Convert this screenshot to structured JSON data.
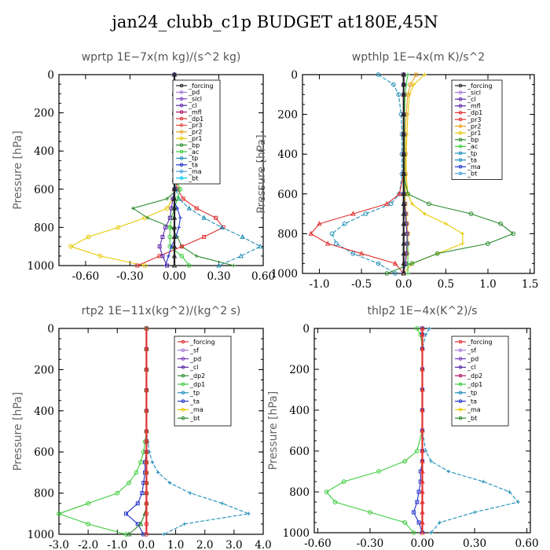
{
  "title": "jan24_clubb_c1p  BUDGET at180E,45N",
  "ylabel": "Pressure [hPa]",
  "chart_data": [
    {
      "type": "line",
      "panel_title": "wprtp  1E−7x(m kg)/(s^2 kg)",
      "xlim": [
        -0.78,
        0.6
      ],
      "ylim": [
        1000,
        0
      ],
      "x_ticks": [
        -0.6,
        -0.3,
        0.0,
        0.3,
        0.6
      ],
      "x_tick_labels": [
        "-0.60",
        "-0.30",
        "0.00",
        "0.30",
        "0.60"
      ],
      "y_ticks": [
        0,
        200,
        400,
        600,
        800,
        1000
      ],
      "y_tick_labels": [
        "0",
        "200",
        "400",
        "600",
        "800",
        "1000"
      ],
      "legend": [
        "_forcing",
        "_pd",
        "_sicl",
        "_cl",
        "_mfl",
        "_dp1",
        "_pr3",
        "_pr2",
        "_pr1",
        "_bp",
        "_ac",
        "_tp",
        "_ta",
        "_ma",
        "_bt"
      ],
      "pressure": [
        0,
        100,
        200,
        300,
        400,
        500,
        550,
        600,
        650,
        700,
        750,
        800,
        850,
        900,
        950,
        1000
      ],
      "series": [
        {
          "name": "_pr1",
          "color": "#e8c800",
          "values": [
            0,
            0,
            0,
            0,
            0,
            0,
            0,
            0,
            -0.01,
            -0.05,
            -0.2,
            -0.38,
            -0.58,
            -0.7,
            -0.5,
            -0.2
          ]
        },
        {
          "name": "_bp",
          "color": "#2e8b2e",
          "values": [
            0,
            0,
            0,
            0,
            0,
            0.01,
            0.01,
            0.02,
            -0.05,
            -0.28,
            -0.18,
            -0.02,
            0.02,
            0.05,
            0.15,
            0.4
          ]
        },
        {
          "name": "_dp1",
          "color": "#e03030",
          "values": [
            0,
            0,
            0,
            0,
            0,
            0,
            0.01,
            0.02,
            0.06,
            0.15,
            0.28,
            0.33,
            0.2,
            0.05,
            -0.1,
            -0.25
          ]
        },
        {
          "name": "_tp",
          "color": "#1f8fb8",
          "values": [
            0,
            0,
            0,
            0,
            0,
            0,
            0,
            0.01,
            0.03,
            0.1,
            0.2,
            0.32,
            0.46,
            0.58,
            0.45,
            0.3
          ]
        },
        {
          "name": "_ac",
          "color": "#3ccc3c",
          "values": [
            0,
            0,
            0,
            0,
            0,
            0,
            0.01,
            0.04,
            0.02,
            0,
            -0.02,
            -0.03,
            -0.03,
            -0.03,
            0.05,
            0.1
          ]
        },
        {
          "name": "_ta",
          "color": "#2233cc",
          "values": [
            0,
            0,
            0,
            0,
            0,
            0,
            0,
            0,
            -0.01,
            0.02,
            0.04,
            0.03,
            0.01,
            -0.02,
            -0.04,
            -0.06
          ]
        },
        {
          "name": "_cl",
          "color": "#5a2aa8",
          "values": [
            0,
            0,
            0,
            0,
            0,
            0,
            0,
            0,
            -0.01,
            -0.02,
            -0.03,
            -0.06,
            -0.08,
            -0.1,
            -0.08,
            -0.05
          ]
        },
        {
          "name": "_forcing",
          "color": "#222222",
          "values": [
            0,
            0,
            0,
            0,
            0,
            0,
            0,
            0,
            0,
            0,
            0,
            0,
            0,
            0,
            0,
            0
          ]
        }
      ]
    },
    {
      "type": "line",
      "panel_title": "wpthlp  1E−4x(m K)/s^2",
      "xlim": [
        -1.2,
        1.55
      ],
      "ylim": [
        1000,
        0
      ],
      "x_ticks": [
        -1.0,
        -0.5,
        0.0,
        0.5,
        1.0,
        1.5
      ],
      "x_tick_labels": [
        "-1.0",
        "-0.5",
        "0.0",
        "0.5",
        "1.0",
        "1.5"
      ],
      "y_ticks": [
        0,
        200,
        400,
        600,
        800,
        1000
      ],
      "y_tick_labels": [
        "0",
        "200",
        "400",
        "600",
        "800",
        "1000"
      ],
      "legend": [
        "_forcing",
        "_sicl",
        "_cl",
        "_mfl",
        "_dp1",
        "_pr3",
        "_pr2",
        "_pr1",
        "_bp",
        "_ac",
        "_tp",
        "_ta",
        "_ma",
        "_bt"
      ],
      "pressure": [
        0,
        50,
        100,
        200,
        300,
        400,
        500,
        600,
        650,
        700,
        750,
        800,
        850,
        900,
        950,
        1000
      ],
      "series": [
        {
          "name": "_tp",
          "color": "#1f8fb8",
          "values": [
            -0.3,
            -0.12,
            -0.06,
            -0.03,
            -0.02,
            -0.02,
            -0.02,
            -0.05,
            -0.15,
            -0.45,
            -0.7,
            -0.85,
            -0.8,
            -0.6,
            -0.3,
            -0.1
          ]
        },
        {
          "name": "_pr1",
          "color": "#e8c800",
          "values": [
            0.25,
            0.12,
            0.07,
            0.05,
            0.04,
            0.03,
            0.03,
            0.05,
            0.1,
            0.25,
            0.5,
            0.7,
            0.7,
            0.4,
            0.1,
            0
          ]
        },
        {
          "name": "_pr2",
          "color": "#e8a020",
          "values": [
            0.15,
            0.08,
            0.05,
            0.03,
            0.02,
            0.02,
            0.02,
            0.02,
            0.02,
            0.03,
            0.04,
            0.05,
            0.05,
            0.04,
            0.02,
            0
          ]
        },
        {
          "name": "_dp1",
          "color": "#e03030",
          "values": [
            0,
            0,
            0,
            0,
            0,
            0,
            0,
            -0.05,
            -0.2,
            -0.6,
            -1.0,
            -1.1,
            -0.9,
            -0.5,
            -0.1,
            0
          ]
        },
        {
          "name": "_bp",
          "color": "#2e8b2e",
          "values": [
            0,
            0,
            0,
            0,
            0,
            0,
            0,
            0.05,
            0.3,
            0.8,
            1.15,
            1.3,
            1.0,
            0.4,
            0.1,
            -0.2
          ]
        },
        {
          "name": "_ac",
          "color": "#3ccc3c",
          "values": [
            0.05,
            0.03,
            0.02,
            0.01,
            0.01,
            0.01,
            0.01,
            0.01,
            0.01,
            0.02,
            0.03,
            0.04,
            0.05,
            0.05,
            0.05,
            0.05
          ]
        },
        {
          "name": "_cl",
          "color": "#5a2aa8",
          "values": [
            0,
            0,
            0,
            0,
            0,
            0,
            0,
            0,
            0.01,
            0.02,
            0.03,
            0.04,
            0.04,
            0.03,
            0.02,
            0
          ]
        },
        {
          "name": "_forcing",
          "color": "#222222",
          "values": [
            0,
            0,
            0,
            0,
            0,
            0,
            0,
            0,
            0,
            0,
            0,
            0,
            0,
            0,
            0,
            0
          ]
        }
      ]
    },
    {
      "type": "line",
      "panel_title": "rtp2  1E−11x(kg^2)/(kg^2 s)",
      "xlim": [
        -3.0,
        4.0
      ],
      "ylim": [
        1000,
        0
      ],
      "x_ticks": [
        -3,
        -2,
        -1,
        0,
        1,
        2,
        3,
        4
      ],
      "x_tick_labels": [
        "-3.0",
        "-2.0",
        "-1.0",
        "0.0",
        "1.0",
        "2.0",
        "3.0",
        "4.0"
      ],
      "y_ticks": [
        0,
        200,
        400,
        600,
        800,
        1000
      ],
      "y_tick_labels": [
        "0",
        "200",
        "400",
        "600",
        "800",
        "1000"
      ],
      "legend": [
        "_forcing",
        "_sf",
        "_pd",
        "_cl",
        "_dp2",
        "_dp1",
        "_tp",
        "_ta",
        "_ma",
        "_bt"
      ],
      "pressure": [
        0,
        100,
        200,
        300,
        400,
        500,
        550,
        600,
        650,
        700,
        750,
        800,
        850,
        900,
        950,
        1000
      ],
      "series": [
        {
          "name": "_dp1",
          "color": "#3ccc3c",
          "values": [
            0,
            0,
            0,
            0,
            0,
            0,
            -0.05,
            -0.1,
            -0.2,
            -0.35,
            -0.6,
            -1.0,
            -2.0,
            -3.0,
            -2.0,
            -0.7
          ]
        },
        {
          "name": "_tp",
          "color": "#1f8fb8",
          "values": [
            0,
            0,
            0,
            0,
            0,
            0,
            0.05,
            0.1,
            0.2,
            0.4,
            0.8,
            1.5,
            2.6,
            3.5,
            1.3,
            0.6
          ]
        },
        {
          "name": "_ta",
          "color": "#2233cc",
          "values": [
            0,
            0,
            0,
            0,
            0,
            0,
            0,
            0,
            -0.05,
            -0.05,
            -0.1,
            -0.15,
            -0.3,
            -0.7,
            -0.3,
            -0.1
          ]
        },
        {
          "name": "_dp2",
          "color": "#2e8b2e",
          "values": [
            0,
            0,
            0,
            0,
            0,
            0,
            0,
            0,
            0,
            0,
            0,
            0,
            0,
            -0.05,
            -0.2,
            -0.6
          ]
        },
        {
          "name": "_forcing",
          "color": "#e03030",
          "values": [
            0,
            0,
            0,
            0,
            0,
            0,
            0,
            0,
            0,
            0,
            0,
            0,
            0,
            0,
            0,
            0
          ]
        }
      ]
    },
    {
      "type": "line",
      "panel_title": "thlp2  1E−4x(K^2)/s",
      "xlim": [
        -0.62,
        0.62
      ],
      "ylim": [
        1000,
        0
      ],
      "x_ticks": [
        -0.6,
        -0.3,
        0.0,
        0.3,
        0.6
      ],
      "x_tick_labels": [
        "-0.60",
        "-0.30",
        "0.00",
        "0.30",
        "0.60"
      ],
      "y_ticks": [
        0,
        200,
        400,
        600,
        800,
        1000
      ],
      "y_tick_labels": [
        "0",
        "200",
        "400",
        "600",
        "800",
        "1000"
      ],
      "legend": [
        "_forcing",
        "_sf",
        "_pd",
        "_cl",
        "_dp2",
        "_dp1",
        "_tp",
        "_ta",
        "_ma",
        "_bt"
      ],
      "pressure": [
        0,
        30,
        100,
        200,
        300,
        400,
        500,
        600,
        650,
        700,
        750,
        800,
        850,
        900,
        950,
        1000
      ],
      "series": [
        {
          "name": "_dp1",
          "color": "#3ccc3c",
          "values": [
            -0.03,
            -0.01,
            0,
            0,
            0,
            0,
            0,
            -0.03,
            -0.1,
            -0.25,
            -0.45,
            -0.55,
            -0.5,
            -0.3,
            -0.1,
            -0.05
          ]
        },
        {
          "name": "_tp",
          "color": "#1f8fb8",
          "values": [
            0.04,
            0.02,
            0,
            0,
            0,
            0,
            0,
            0.02,
            0.05,
            0.15,
            0.35,
            0.5,
            0.55,
            0.3,
            0.1,
            0.05
          ]
        },
        {
          "name": "_ta",
          "color": "#2233cc",
          "values": [
            0,
            0,
            0,
            0,
            0,
            0,
            0,
            0,
            0,
            -0.01,
            -0.01,
            -0.02,
            -0.03,
            -0.05,
            -0.02,
            0
          ]
        },
        {
          "name": "_forcing",
          "color": "#e03030",
          "values": [
            0,
            0,
            0,
            0,
            0,
            0,
            0,
            0,
            0,
            0,
            0,
            0,
            0,
            0,
            0,
            0
          ]
        }
      ]
    }
  ]
}
